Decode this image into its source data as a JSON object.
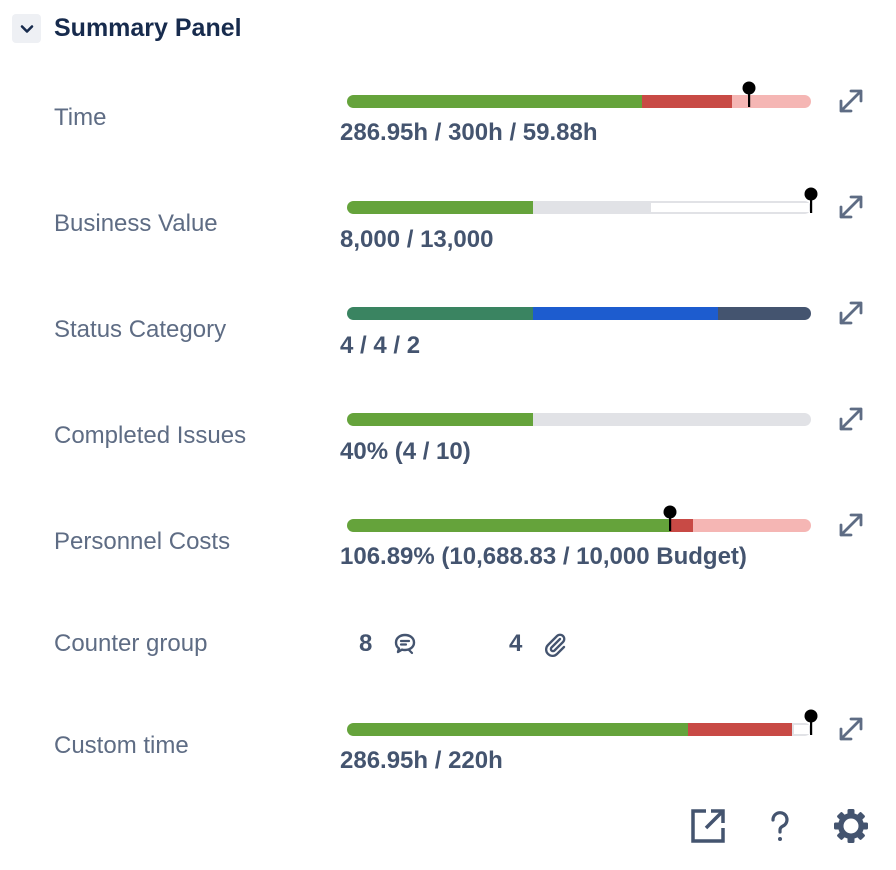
{
  "header": {
    "title": "Summary Panel",
    "icon": "chevron-down-icon"
  },
  "colors": {
    "green": "#65a33b",
    "red": "#c84a45",
    "pink": "#f5b6b4",
    "gray": "#e1e2e6",
    "white": "#ffffff",
    "dark_green": "#3a8461",
    "blue": "#1d5ccf",
    "slate": "#44546f"
  },
  "rows": [
    {
      "label": "Time",
      "value": "286.95h / 300h / 59.88h",
      "segments": [
        {
          "f": 0.636,
          "c": "green"
        },
        {
          "f": 0.194,
          "c": "red"
        },
        {
          "f": 0.17,
          "c": "pink"
        }
      ],
      "marker": 0.866
    },
    {
      "label": "Business Value",
      "value": "8,000 / 13,000",
      "segments": [
        {
          "f": 0.4,
          "c": "green"
        },
        {
          "f": 0.25,
          "c": "gray"
        },
        {
          "f": 0.35,
          "c": "white"
        }
      ],
      "marker": 1.0
    },
    {
      "label": "Status Category",
      "value": "4 / 4 / 2",
      "segments": [
        {
          "f": 0.4,
          "c": "dark_green"
        },
        {
          "f": 0.4,
          "c": "blue"
        },
        {
          "f": 0.2,
          "c": "slate"
        }
      ]
    },
    {
      "label": "Completed Issues",
      "value": "40% (4 / 10)",
      "segments": [
        {
          "f": 0.4,
          "c": "green"
        },
        {
          "f": 0.6,
          "c": "gray"
        }
      ]
    },
    {
      "label": "Personnel Costs",
      "value": "106.89% (10,688.83 / 10,000 Budget)",
      "segments": [
        {
          "f": 0.696,
          "c": "green"
        },
        {
          "f": 0.05,
          "c": "red"
        },
        {
          "f": 0.254,
          "c": "pink"
        }
      ],
      "marker": 0.696
    },
    {
      "label": "Custom time",
      "value": "286.95h / 220h",
      "segments": [
        {
          "f": 0.735,
          "c": "green"
        },
        {
          "f": 0.224,
          "c": "red"
        },
        {
          "f": 0.041,
          "c": "white"
        }
      ],
      "marker": 1.0
    }
  ],
  "counter_group": {
    "label": "Counter group",
    "comments": "8",
    "attachments": "4"
  },
  "footer": {
    "icons": [
      "external-link-icon",
      "help-icon",
      "settings-icon"
    ]
  }
}
